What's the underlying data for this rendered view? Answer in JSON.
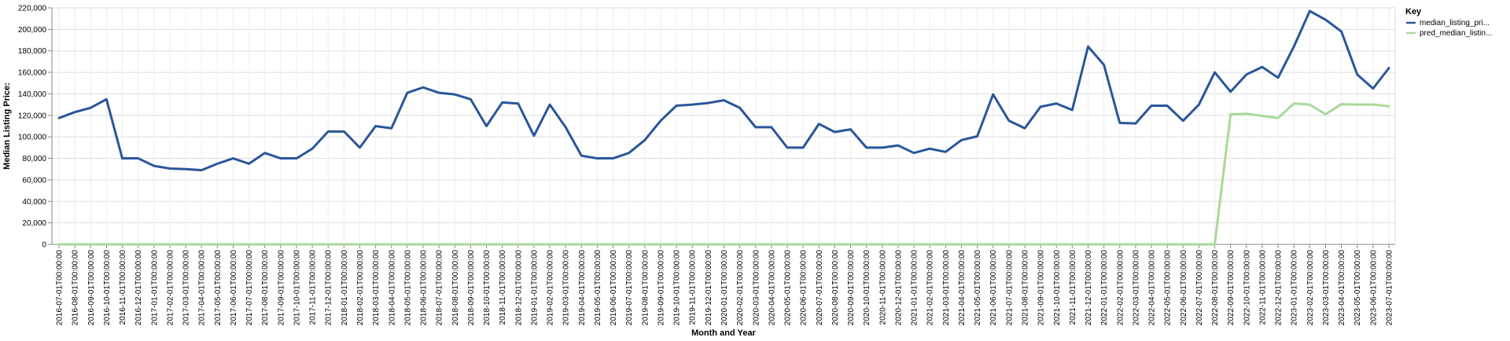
{
  "chart_data": {
    "type": "line",
    "xlabel": "Month and Year",
    "ylabel": "Median Listing Price:",
    "ylim": [
      0,
      220000
    ],
    "y_ticks": [
      0,
      20000,
      40000,
      60000,
      80000,
      100000,
      120000,
      140000,
      160000,
      180000,
      200000,
      220000
    ],
    "y_tick_labels": [
      "0",
      "20,000",
      "40,000",
      "60,000",
      "80,000",
      "100,000",
      "120,000",
      "140,000",
      "160,000",
      "180,000",
      "200,000",
      "220,000"
    ],
    "grid": true,
    "legend": {
      "title": "Key",
      "placement": "top-right"
    },
    "x": [
      "2016-07-01T00:00:00",
      "2016-08-01T00:00:00",
      "2016-09-01T00:00:00",
      "2016-10-01T00:00:00",
      "2016-11-01T00:00:00",
      "2016-12-01T00:00:00",
      "2017-01-01T00:00:00",
      "2017-02-01T00:00:00",
      "2017-03-01T00:00:00",
      "2017-04-01T00:00:00",
      "2017-05-01T00:00:00",
      "2017-06-01T00:00:00",
      "2017-07-01T00:00:00",
      "2017-08-01T00:00:00",
      "2017-09-01T00:00:00",
      "2017-10-01T00:00:00",
      "2017-11-01T00:00:00",
      "2017-12-01T00:00:00",
      "2018-01-01T00:00:00",
      "2018-02-01T00:00:00",
      "2018-03-01T00:00:00",
      "2018-04-01T00:00:00",
      "2018-05-01T00:00:00",
      "2018-06-01T00:00:00",
      "2018-07-01T00:00:00",
      "2018-08-01T00:00:00",
      "2018-09-01T00:00:00",
      "2018-10-01T00:00:00",
      "2018-11-01T00:00:00",
      "2018-12-01T00:00:00",
      "2019-01-01T00:00:00",
      "2019-02-01T00:00:00",
      "2019-03-01T00:00:00",
      "2019-04-01T00:00:00",
      "2019-05-01T00:00:00",
      "2019-06-01T00:00:00",
      "2019-07-01T00:00:00",
      "2019-08-01T00:00:00",
      "2019-09-01T00:00:00",
      "2019-10-01T00:00:00",
      "2019-11-01T00:00:00",
      "2019-12-01T00:00:00",
      "2020-01-01T00:00:00",
      "2020-02-01T00:00:00",
      "2020-03-01T00:00:00",
      "2020-04-01T00:00:00",
      "2020-05-01T00:00:00",
      "2020-06-01T00:00:00",
      "2020-07-01T00:00:00",
      "2020-08-01T00:00:00",
      "2020-09-01T00:00:00",
      "2020-10-01T00:00:00",
      "2020-11-01T00:00:00",
      "2020-12-01T00:00:00",
      "2021-01-01T00:00:00",
      "2021-02-01T00:00:00",
      "2021-03-01T00:00:00",
      "2021-04-01T00:00:00",
      "2021-05-01T00:00:00",
      "2021-06-01T00:00:00",
      "2021-07-01T00:00:00",
      "2021-08-01T00:00:00",
      "2021-09-01T00:00:00",
      "2021-10-01T00:00:00",
      "2021-11-01T00:00:00",
      "2021-12-01T00:00:00",
      "2022-01-01T00:00:00",
      "2022-02-01T00:00:00",
      "2022-03-01T00:00:00",
      "2022-04-01T00:00:00",
      "2022-05-01T00:00:00",
      "2022-06-01T00:00:00",
      "2022-07-01T00:00:00",
      "2022-08-01T00:00:00",
      "2022-09-01T00:00:00",
      "2022-10-01T00:00:00",
      "2022-11-01T00:00:00",
      "2022-12-01T00:00:00",
      "2023-01-01T00:00:00",
      "2023-02-01T00:00:00",
      "2023-03-01T00:00:00",
      "2023-04-01T00:00:00",
      "2023-05-01T00:00:00",
      "2023-06-01T00:00:00",
      "2023-07-01T00:00:00"
    ],
    "series": [
      {
        "name": "median_listing_pri...",
        "color": "#2a5699",
        "values": [
          117500,
          123000,
          127000,
          135000,
          80000,
          80000,
          73000,
          70500,
          70000,
          69000,
          75000,
          80000,
          75000,
          85000,
          80000,
          80000,
          89000,
          105000,
          105000,
          90000,
          110000,
          108000,
          141000,
          146000,
          141000,
          139500,
          135000,
          110000,
          132000,
          131000,
          101000,
          130000,
          109000,
          82500,
          80000,
          80000,
          85000,
          97000,
          115000,
          129000,
          130000,
          131500,
          134000,
          127000,
          109000,
          109000,
          90000,
          90000,
          112000,
          104500,
          107000,
          90000,
          90000,
          92000,
          85000,
          89000,
          86000,
          97000,
          100500,
          139500,
          115000,
          108000,
          128000,
          131000,
          125000,
          184000,
          167000,
          113000,
          112500,
          129000,
          129000,
          115000,
          130000,
          160000,
          142000,
          158000,
          165000,
          155000,
          184000,
          217000,
          209000,
          198000,
          158000,
          145000,
          164000
        ]
      },
      {
        "name": "pred_median_listin...",
        "color": "#a8d99a",
        "values": [
          0,
          0,
          0,
          0,
          0,
          0,
          0,
          0,
          0,
          0,
          0,
          0,
          0,
          0,
          0,
          0,
          0,
          0,
          0,
          0,
          0,
          0,
          0,
          0,
          0,
          0,
          0,
          0,
          0,
          0,
          0,
          0,
          0,
          0,
          0,
          0,
          0,
          0,
          0,
          0,
          0,
          0,
          0,
          0,
          0,
          0,
          0,
          0,
          0,
          0,
          0,
          0,
          0,
          0,
          0,
          0,
          0,
          0,
          0,
          0,
          0,
          0,
          0,
          0,
          0,
          0,
          0,
          0,
          0,
          0,
          0,
          0,
          0,
          0,
          121000,
          121500,
          119500,
          117500,
          131000,
          130000,
          121000,
          130500,
          130000,
          130000,
          128500
        ]
      }
    ]
  }
}
